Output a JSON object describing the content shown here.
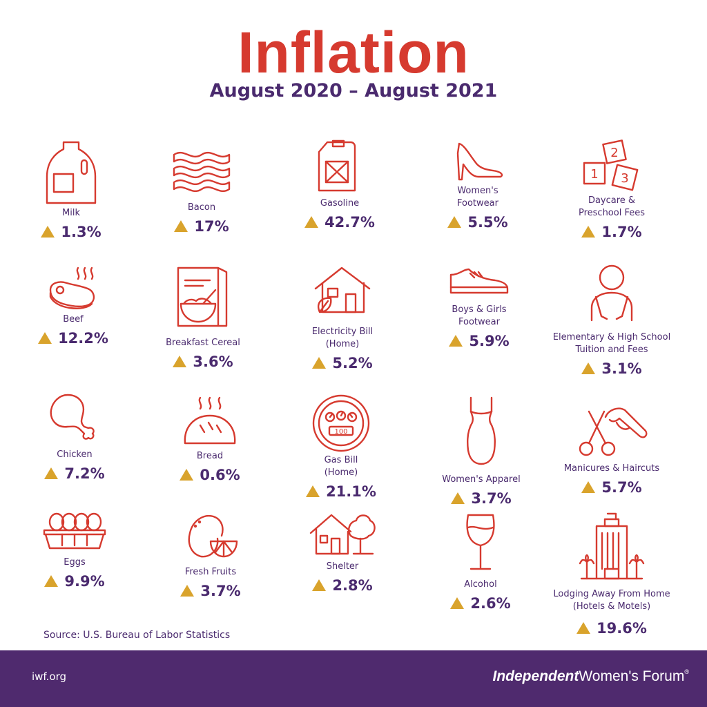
{
  "title": "Inflation",
  "subtitle": "August 2020 – August 2021",
  "colors": {
    "title": "#d63a2f",
    "text": "#4a2a6e",
    "arrow": "#d9a32c",
    "footer": "#4f2a6e"
  },
  "items": [
    {
      "label": "Milk",
      "value": "1.3%",
      "icon": "milk-jug-icon"
    },
    {
      "label": "Bacon",
      "value": "17%",
      "icon": "bacon-icon"
    },
    {
      "label": "Gasoline",
      "value": "42.7%",
      "icon": "gas-can-icon"
    },
    {
      "label": "Women's",
      "label2": "Footwear",
      "value": "5.5%",
      "icon": "high-heel-icon"
    },
    {
      "label": "Daycare &",
      "label2": "Preschool Fees",
      "value": "1.7%",
      "icon": "toy-blocks-icon"
    },
    {
      "label": "Beef",
      "value": "12.2%",
      "icon": "steak-icon"
    },
    {
      "label": "Breakfast Cereal",
      "value": "3.6%",
      "icon": "cereal-icon"
    },
    {
      "label": "Electricity Bill",
      "label2": "(Home)",
      "value": "5.2%",
      "icon": "eco-house-icon"
    },
    {
      "label": "Boys & Girls",
      "label2": "Footwear",
      "value": "5.9%",
      "icon": "sneaker-icon"
    },
    {
      "label": "Elementary & High School",
      "label2": "Tuition and Fees",
      "value": "3.1%",
      "icon": "student-icon"
    },
    {
      "label": "Chicken",
      "value": "7.2%",
      "icon": "drumstick-icon"
    },
    {
      "label": "Bread",
      "value": "0.6%",
      "icon": "bread-icon"
    },
    {
      "label": "Gas Bill",
      "label2": "(Home)",
      "value": "21.1%",
      "icon": "gas-meter-icon"
    },
    {
      "label": "Women's Apparel",
      "value": "3.7%",
      "icon": "dress-icon"
    },
    {
      "label": "Manicures & Haircuts",
      "value": "5.7%",
      "icon": "scissors-nails-icon"
    },
    {
      "label": "Eggs",
      "value": "9.9%",
      "icon": "egg-carton-icon"
    },
    {
      "label": "Fresh Fruits",
      "value": "3.7%",
      "icon": "citrus-icon"
    },
    {
      "label": "Shelter",
      "value": "2.8%",
      "icon": "house-tree-icon"
    },
    {
      "label": "Alcohol",
      "value": "2.6%",
      "icon": "wine-glass-icon"
    },
    {
      "label": "Lodging Away From Home",
      "label2": "(Hotels & Motels)",
      "value": "19.6%",
      "icon": "hotel-icon"
    }
  ],
  "meter_reading": "100",
  "blocks": [
    "1",
    "2",
    "3"
  ],
  "source": "Source: U.S. Bureau of Labor Statistics",
  "footer": {
    "site": "iwf.org",
    "brand_1": "Independent",
    "brand_2": "Women's Forum",
    "brand_reg": "®"
  }
}
